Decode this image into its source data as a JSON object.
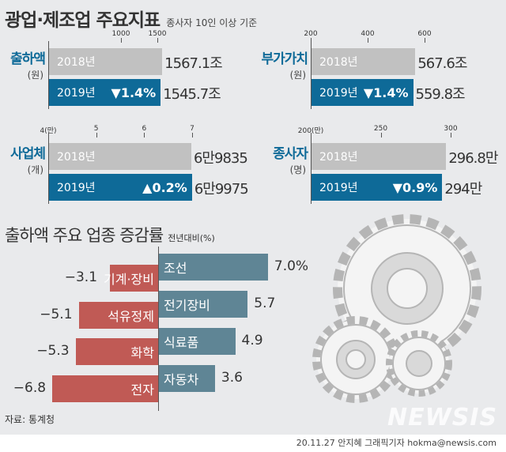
{
  "header": {
    "title": "광업·제조업 주요지표",
    "subtitle": "종사자 10인 이상 기준"
  },
  "panels": [
    {
      "label": "출하액",
      "unit": "(원)",
      "ticks": [
        {
          "v": 1000,
          "t": "1000"
        },
        {
          "v": 1500,
          "t": "1500"
        }
      ],
      "axis_min": 0,
      "axis_max": 1500,
      "bars": [
        {
          "year": "2018년",
          "value": 1567.1,
          "text": "1567.1조",
          "change": ""
        },
        {
          "year": "2019년",
          "value": 1545.7,
          "text": "1545.7조",
          "change": "▼1.4%"
        }
      ]
    },
    {
      "label": "부가가치",
      "unit": "(원)",
      "ticks": [
        {
          "v": 200,
          "t": "200"
        },
        {
          "v": 400,
          "t": "400"
        },
        {
          "v": 600,
          "t": "600"
        }
      ],
      "axis_min": 200,
      "axis_max": 600,
      "bars": [
        {
          "year": "2018년",
          "value": 567.6,
          "text": "567.6조",
          "change": ""
        },
        {
          "year": "2019년",
          "value": 559.8,
          "text": "559.8조",
          "change": "▼1.4%"
        }
      ]
    },
    {
      "label": "사업체",
      "unit": "(개)",
      "ticks": [
        {
          "v": 4,
          "t": "4(만)"
        },
        {
          "v": 5,
          "t": "5"
        },
        {
          "v": 6,
          "t": "6"
        },
        {
          "v": 7,
          "t": "7"
        }
      ],
      "axis_min": 4,
      "axis_max": 7,
      "bars": [
        {
          "year": "2018년",
          "value": 6.9835,
          "text": "6만9835",
          "change": ""
        },
        {
          "year": "2019년",
          "value": 6.9975,
          "text": "6만9975",
          "change": "▲0.2%"
        }
      ]
    },
    {
      "label": "종사자",
      "unit": "(명)",
      "ticks": [
        {
          "v": 200,
          "t": "200(만)"
        },
        {
          "v": 250,
          "t": "250"
        },
        {
          "v": 300,
          "t": "300"
        }
      ],
      "axis_min": 200,
      "axis_max": 300,
      "bars": [
        {
          "year": "2018년",
          "value": 296.8,
          "text": "296.8만",
          "change": ""
        },
        {
          "year": "2019년",
          "value": 294,
          "text": "294만",
          "change": "▼0.9%"
        }
      ]
    }
  ],
  "chart_data": {
    "type": "bar",
    "orientation": "horizontal",
    "title": "출하액 주요 업종 증감률",
    "subtitle": "전년대비(%)",
    "series": [
      {
        "categories": [
          "조선",
          "전기장비",
          "식료품",
          "자동차"
        ],
        "values": [
          7.0,
          5.7,
          4.9,
          3.6
        ],
        "labels": [
          "7.0%",
          "5.7",
          "4.9",
          "3.6"
        ],
        "color": "#5f8595"
      },
      {
        "categories": [
          "기계·장비",
          "석유정제",
          "화학",
          "전자"
        ],
        "values": [
          -3.1,
          -5.1,
          -5.3,
          -6.8
        ],
        "labels": [
          "−3.1",
          "−5.1",
          "−5.3",
          "−6.8"
        ],
        "color": "#c05a55"
      }
    ]
  },
  "colors": {
    "accent": "#0e6a98",
    "bar2018": "#c1c1c1",
    "positive": "#5f8595",
    "negative": "#c05a55"
  },
  "footer": {
    "source": "자료: 통계청",
    "credit": "20.11.27 안지혜 그래픽기자 hokma@newsis.com",
    "logo": "NEWSIS"
  }
}
